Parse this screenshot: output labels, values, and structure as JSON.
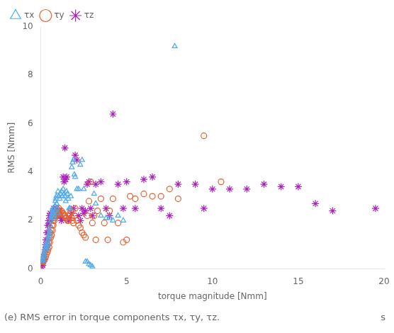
{
  "chart_data": {
    "type": "scatter",
    "title": "(e) RMS error in torque components τx, τy, τz.",
    "annotations": [
      "s"
    ],
    "x_label": "torque magnitude [Nmm]",
    "y_label": "RMS [Nmm]",
    "xlim": [
      0,
      20
    ],
    "ylim": [
      0,
      10
    ],
    "xticks": [
      0,
      5,
      10,
      15,
      20
    ],
    "yticks": [
      0,
      2,
      4,
      6,
      8,
      10
    ],
    "grid": false,
    "legend": "upper left",
    "series": [
      {
        "name": "τx",
        "color": "#4DAAEE",
        "marker": "triangle",
        "x": [
          0.05,
          0.08,
          0.1,
          0.12,
          0.15,
          0.18,
          0.2,
          0.22,
          0.25,
          0.28,
          0.3,
          0.32,
          0.35,
          0.38,
          0.4,
          0.42,
          0.45,
          0.48,
          0.5,
          0.52,
          0.55,
          0.58,
          0.6,
          0.62,
          0.65,
          0.68,
          0.7,
          0.72,
          0.75,
          0.78,
          0.8,
          0.82,
          0.85,
          0.88,
          0.9,
          0.92,
          0.95,
          0.98,
          1.0,
          1.05,
          1.1,
          1.15,
          1.2,
          1.25,
          1.3,
          1.35,
          1.4,
          1.45,
          1.5,
          1.55,
          1.6,
          1.65,
          1.7,
          1.75,
          1.8,
          1.85,
          1.9,
          1.95,
          2.0,
          2.1,
          2.2,
          2.3,
          2.4,
          2.5,
          2.6,
          2.7,
          2.8,
          2.9,
          3.0,
          3.1,
          3.2,
          3.5,
          3.8,
          4.0,
          4.2,
          4.5,
          4.8,
          7.8
        ],
        "values": [
          0.3,
          0.4,
          0.5,
          0.4,
          0.35,
          0.6,
          0.7,
          0.5,
          0.8,
          0.9,
          1.0,
          0.8,
          0.9,
          1.1,
          1.2,
          1.0,
          1.3,
          1.4,
          1.5,
          1.6,
          1.8,
          2.0,
          2.1,
          2.2,
          2.3,
          2.4,
          2.5,
          2.3,
          2.1,
          2.2,
          2.4,
          2.6,
          2.8,
          2.9,
          3.0,
          2.7,
          2.5,
          2.3,
          3.2,
          3.0,
          2.9,
          3.1,
          3.2,
          3.0,
          3.3,
          3.1,
          3.0,
          2.8,
          3.2,
          3.1,
          2.9,
          2.5,
          2.5,
          3.0,
          4.2,
          4.4,
          4.5,
          3.9,
          3.8,
          3.3,
          3.3,
          4.3,
          4.5,
          3.3,
          0.3,
          0.3,
          0.2,
          0.15,
          0.1,
          3.1,
          2.7,
          2.2,
          2.1,
          2.1,
          2.0,
          2.2,
          2.0,
          9.2
        ]
      },
      {
        "name": "τy",
        "color": "#E8602C",
        "marker": "circle",
        "x": [
          0.05,
          0.08,
          0.1,
          0.12,
          0.15,
          0.18,
          0.2,
          0.22,
          0.25,
          0.28,
          0.3,
          0.32,
          0.35,
          0.38,
          0.4,
          0.42,
          0.45,
          0.48,
          0.5,
          0.52,
          0.55,
          0.58,
          0.6,
          0.62,
          0.65,
          0.68,
          0.7,
          0.72,
          0.75,
          0.78,
          0.8,
          0.82,
          0.85,
          0.88,
          0.9,
          0.92,
          0.95,
          0.98,
          1.0,
          1.05,
          1.1,
          1.15,
          1.2,
          1.25,
          1.3,
          1.35,
          1.4,
          1.45,
          1.5,
          1.55,
          1.6,
          1.65,
          1.7,
          1.75,
          1.8,
          1.85,
          1.9,
          1.95,
          2.0,
          2.1,
          2.2,
          2.3,
          2.4,
          2.5,
          2.6,
          2.7,
          2.8,
          2.9,
          3.0,
          3.1,
          3.2,
          3.3,
          3.5,
          3.7,
          3.9,
          4.0,
          4.2,
          4.5,
          4.8,
          5.0,
          5.2,
          5.5,
          6.0,
          6.5,
          7.0,
          7.5,
          8.0,
          9.5,
          10.5
        ],
        "values": [
          0.2,
          0.3,
          0.4,
          0.3,
          0.3,
          0.4,
          0.5,
          0.4,
          0.7,
          0.5,
          0.8,
          0.6,
          0.9,
          0.7,
          1.0,
          0.8,
          1.1,
          0.9,
          1.3,
          1.1,
          1.5,
          1.3,
          1.6,
          1.4,
          1.8,
          1.6,
          2.0,
          1.8,
          2.2,
          2.0,
          2.2,
          2.1,
          2.3,
          2.2,
          2.4,
          2.3,
          2.3,
          2.2,
          2.4,
          2.5,
          2.4,
          2.3,
          2.4,
          2.3,
          2.3,
          2.2,
          2.2,
          2.1,
          2.1,
          2.0,
          2.0,
          2.2,
          2.3,
          2.4,
          2.1,
          2.0,
          1.9,
          2.2,
          2.5,
          2.0,
          1.8,
          1.7,
          1.5,
          1.4,
          1.3,
          2.2,
          2.8,
          3.6,
          1.9,
          2.2,
          1.2,
          2.4,
          2.9,
          1.9,
          1.2,
          2.4,
          2.9,
          1.9,
          1.1,
          1.2,
          3.0,
          2.9,
          3.1,
          3.0,
          3.0,
          3.3,
          2.9,
          5.5,
          3.6
        ]
      },
      {
        "name": "τz",
        "color": "#AA22BB",
        "marker": "star",
        "x": [
          0.05,
          0.08,
          0.1,
          0.12,
          0.15,
          0.18,
          0.2,
          0.22,
          0.25,
          0.28,
          0.3,
          0.32,
          0.35,
          0.38,
          0.4,
          0.42,
          0.45,
          0.48,
          0.5,
          0.55,
          0.6,
          0.65,
          0.7,
          0.75,
          0.8,
          0.85,
          0.9,
          0.95,
          1.0,
          1.05,
          1.1,
          1.15,
          1.2,
          1.25,
          1.3,
          1.35,
          1.4,
          1.45,
          1.5,
          1.6,
          1.7,
          1.8,
          1.9,
          2.0,
          2.1,
          2.2,
          2.3,
          2.4,
          2.5,
          2.6,
          2.7,
          2.8,
          2.9,
          3.0,
          3.2,
          3.5,
          3.8,
          4.0,
          4.2,
          4.5,
          4.8,
          5.0,
          5.5,
          6.0,
          6.5,
          7.0,
          7.5,
          8.0,
          9.0,
          9.5,
          10.0,
          11.0,
          12.0,
          13.0,
          14.0,
          15.0,
          16.0,
          17.0,
          19.5
        ],
        "values": [
          0.1,
          0.2,
          0.15,
          0.3,
          0.4,
          0.5,
          0.6,
          0.4,
          0.8,
          1.0,
          1.2,
          0.9,
          1.5,
          1.2,
          1.8,
          1.5,
          2.0,
          1.8,
          2.2,
          2.3,
          2.0,
          2.2,
          2.3,
          2.5,
          2.3,
          2.4,
          2.5,
          2.2,
          2.3,
          2.4,
          2.4,
          2.2,
          2.0,
          2.1,
          3.8,
          3.6,
          5.0,
          3.7,
          3.8,
          2.0,
          2.1,
          2.3,
          2.5,
          4.7,
          4.5,
          2.2,
          2.0,
          2.5,
          2.3,
          2.4,
          3.5,
          3.6,
          2.5,
          2.2,
          3.5,
          3.6,
          2.5,
          2.2,
          6.4,
          3.5,
          2.5,
          3.6,
          2.5,
          3.7,
          3.8,
          2.5,
          2.2,
          3.5,
          3.5,
          2.5,
          3.3,
          3.3,
          3.3,
          3.5,
          3.4,
          3.4,
          2.7,
          2.4,
          2.5
        ]
      }
    ]
  }
}
